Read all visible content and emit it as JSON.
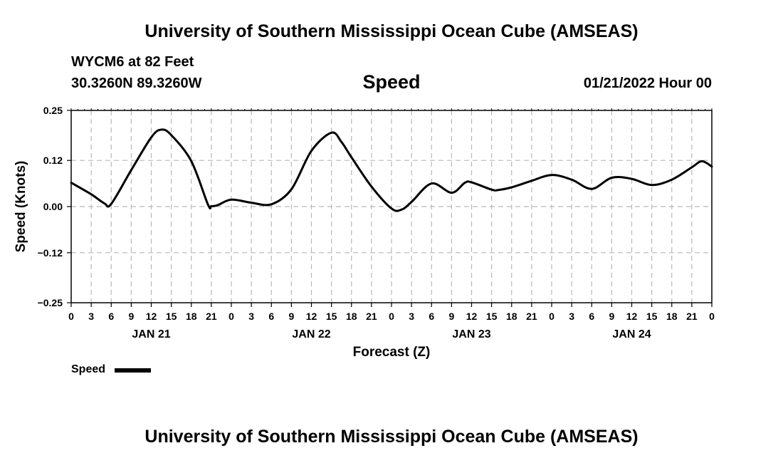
{
  "header": {
    "title": "University of Southern Mississippi Ocean Cube (AMSEAS)",
    "station": "WYCM6 at 82 Feet",
    "coords": "30.3260N  89.3260W",
    "variable": "Speed",
    "datetime": "01/21/2022 Hour 00"
  },
  "footer": {
    "title": "University of Southern Mississippi Ocean Cube (AMSEAS)"
  },
  "legend": {
    "label": "Speed"
  },
  "chart_data": {
    "type": "line",
    "title": "Speed",
    "xlabel": "Forecast (Z)",
    "ylabel": "Speed (Knots)",
    "xlim": [
      0,
      96
    ],
    "ylim": [
      -0.25,
      0.25
    ],
    "yticks": [
      0.25,
      0.12,
      0.0,
      -0.12,
      -0.25
    ],
    "ytick_labels": [
      "0.25",
      "0.12",
      "0.00",
      "−0.12",
      "−0.25"
    ],
    "xtick_hours": [
      0,
      3,
      6,
      9,
      12,
      15,
      18,
      21,
      24,
      27,
      30,
      33,
      36,
      39,
      42,
      45,
      48,
      51,
      54,
      57,
      60,
      63,
      66,
      69,
      72,
      75,
      78,
      81,
      84,
      87,
      90,
      93,
      96
    ],
    "xtick_labels": [
      "0",
      "3",
      "6",
      "9",
      "12",
      "15",
      "18",
      "21",
      "0",
      "3",
      "6",
      "9",
      "12",
      "15",
      "18",
      "21",
      "0",
      "3",
      "6",
      "9",
      "12",
      "15",
      "18",
      "21",
      "0",
      "3",
      "6",
      "9",
      "12",
      "15",
      "18",
      "21",
      "0"
    ],
    "day_labels": [
      {
        "hour": 12,
        "label": "JAN 21"
      },
      {
        "hour": 36,
        "label": "JAN 22"
      },
      {
        "hour": 60,
        "label": "JAN 23"
      },
      {
        "hour": 84,
        "label": "JAN 24"
      }
    ],
    "grid": true,
    "series": [
      {
        "name": "Speed",
        "color": "#000000",
        "x": [
          0,
          3,
          5,
          6,
          9,
          12,
          13.5,
          15,
          18,
          20.5,
          21,
          22,
          24,
          27,
          30,
          33,
          36,
          39,
          40.5,
          42,
          45,
          48,
          49.5,
          51,
          54,
          57,
          59,
          60,
          63,
          64,
          66,
          69,
          72,
          75,
          78,
          81,
          84,
          87,
          90,
          93,
          94.5,
          96
        ],
        "y": [
          0.062,
          0.032,
          0.008,
          0.007,
          0.095,
          0.18,
          0.2,
          0.186,
          0.118,
          0.005,
          0.001,
          0.004,
          0.018,
          0.01,
          0.006,
          0.045,
          0.145,
          0.192,
          0.168,
          0.128,
          0.052,
          -0.005,
          -0.008,
          0.012,
          0.06,
          0.036,
          0.062,
          0.063,
          0.044,
          0.043,
          0.05,
          0.067,
          0.082,
          0.07,
          0.046,
          0.075,
          0.072,
          0.056,
          0.07,
          0.102,
          0.118,
          0.104
        ]
      }
    ]
  }
}
